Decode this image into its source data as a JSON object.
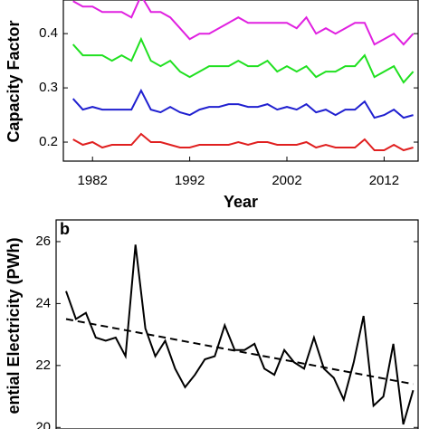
{
  "chart_data": [
    {
      "type": "line",
      "x_label": "Year",
      "y_label": "Capacity Factor",
      "x": [
        1980,
        1981,
        1982,
        1983,
        1984,
        1985,
        1986,
        1987,
        1988,
        1989,
        1990,
        1991,
        1992,
        1993,
        1994,
        1995,
        1996,
        1997,
        1998,
        1999,
        2000,
        2001,
        2002,
        2003,
        2004,
        2005,
        2006,
        2007,
        2008,
        2009,
        2010,
        2011,
        2012,
        2013,
        2014,
        2015
      ],
      "xlim": [
        1979,
        2015.5
      ],
      "xticks": [
        1982,
        1992,
        2002,
        2012
      ],
      "ylim": [
        0.165,
        0.462
      ],
      "yticks": [
        0.2,
        0.3,
        0.4
      ],
      "series": [
        {
          "color": "#e020e0",
          "values": [
            0.46,
            0.45,
            0.45,
            0.44,
            0.44,
            0.44,
            0.43,
            0.47,
            0.44,
            0.44,
            0.43,
            0.41,
            0.39,
            0.4,
            0.4,
            0.41,
            0.42,
            0.43,
            0.42,
            0.42,
            0.42,
            0.42,
            0.42,
            0.41,
            0.43,
            0.4,
            0.41,
            0.4,
            0.41,
            0.42,
            0.42,
            0.38,
            0.39,
            0.4,
            0.38,
            0.4
          ]
        },
        {
          "color": "#20e020",
          "values": [
            0.38,
            0.36,
            0.36,
            0.36,
            0.35,
            0.36,
            0.35,
            0.39,
            0.35,
            0.34,
            0.35,
            0.33,
            0.32,
            0.33,
            0.34,
            0.34,
            0.34,
            0.35,
            0.34,
            0.34,
            0.35,
            0.33,
            0.34,
            0.33,
            0.34,
            0.32,
            0.33,
            0.33,
            0.34,
            0.34,
            0.36,
            0.32,
            0.33,
            0.34,
            0.31,
            0.33
          ]
        },
        {
          "color": "#2020d0",
          "values": [
            0.28,
            0.26,
            0.265,
            0.26,
            0.26,
            0.26,
            0.26,
            0.295,
            0.26,
            0.255,
            0.265,
            0.255,
            0.25,
            0.26,
            0.265,
            0.265,
            0.27,
            0.27,
            0.265,
            0.265,
            0.27,
            0.26,
            0.265,
            0.26,
            0.27,
            0.255,
            0.26,
            0.25,
            0.26,
            0.26,
            0.275,
            0.245,
            0.25,
            0.26,
            0.245,
            0.25
          ]
        },
        {
          "color": "#e02020",
          "values": [
            0.205,
            0.195,
            0.2,
            0.19,
            0.195,
            0.195,
            0.195,
            0.215,
            0.2,
            0.2,
            0.195,
            0.19,
            0.19,
            0.195,
            0.195,
            0.195,
            0.195,
            0.2,
            0.195,
            0.2,
            0.2,
            0.195,
            0.195,
            0.195,
            0.2,
            0.19,
            0.195,
            0.19,
            0.19,
            0.19,
            0.205,
            0.185,
            0.185,
            0.195,
            0.185,
            0.19
          ]
        }
      ]
    },
    {
      "type": "line",
      "panel_label": "b",
      "y_label": "ential Electricity (PWh)",
      "x": [
        1980,
        1981,
        1982,
        1983,
        1984,
        1985,
        1986,
        1987,
        1988,
        1989,
        1990,
        1991,
        1992,
        1993,
        1994,
        1995,
        1996,
        1997,
        1998,
        1999,
        2000,
        2001,
        2002,
        2003,
        2004,
        2005,
        2006,
        2007,
        2008,
        2009,
        2010,
        2011,
        2012,
        2013,
        2014,
        2015
      ],
      "xlim": [
        1979,
        2015.5
      ],
      "ylim": [
        19.95,
        26.7
      ],
      "yticks": [
        20,
        22,
        24,
        26
      ],
      "series": [
        {
          "color": "#000000",
          "dash": false,
          "values": [
            24.4,
            23.5,
            23.7,
            22.9,
            22.8,
            22.9,
            22.3,
            25.9,
            23.2,
            22.3,
            22.8,
            21.9,
            21.3,
            21.7,
            22.2,
            22.3,
            23.3,
            22.5,
            22.5,
            22.7,
            21.9,
            21.7,
            22.5,
            22.1,
            21.9,
            22.9,
            21.9,
            21.6,
            20.9,
            22.1,
            23.6,
            20.7,
            21.0,
            22.7,
            20.1,
            21.2
          ]
        },
        {
          "color": "#000000",
          "dash": true,
          "values": [
            23.5,
            23.44,
            23.38,
            23.32,
            23.26,
            23.2,
            23.14,
            23.08,
            23.02,
            22.96,
            22.9,
            22.84,
            22.78,
            22.72,
            22.66,
            22.6,
            22.54,
            22.48,
            22.42,
            22.36,
            22.3,
            22.24,
            22.18,
            22.12,
            22.06,
            22.0,
            21.94,
            21.88,
            21.82,
            21.76,
            21.7,
            21.64,
            21.58,
            21.52,
            21.46,
            21.4
          ]
        }
      ]
    }
  ]
}
